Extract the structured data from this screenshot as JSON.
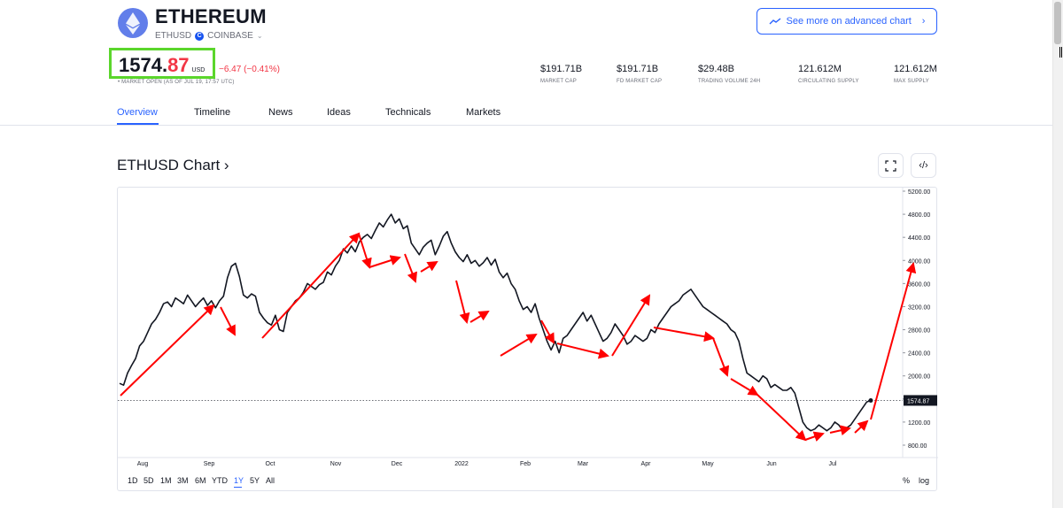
{
  "header": {
    "name": "ETHEREUM",
    "symbol": "ETHUSD",
    "exchange": "COINBASE",
    "advanced_label": "See more on advanced chart",
    "logo_color": "#627eea"
  },
  "quote": {
    "price_int": "1574.",
    "price_dec": "87",
    "currency": "USD",
    "change": "−6.47 (−0.41%)",
    "market_status": "• MARKET OPEN (AS OF JUL 19, 17:57 UTC)"
  },
  "stats": [
    {
      "value": "$191.71B",
      "label": "MARKET CAP"
    },
    {
      "value": "$191.71B",
      "label": "FD MARKET CAP"
    },
    {
      "value": "$29.48B",
      "label": "TRADING VOLUME 24H"
    },
    {
      "value": "121.612M",
      "label": "CIRCULATING SUPPLY"
    },
    {
      "value": "121.612M",
      "label": "MAX SUPPLY"
    }
  ],
  "tabs": [
    "Overview",
    "Timeline",
    "News",
    "Ideas",
    "Technicals",
    "Markets"
  ],
  "chart_title": "ETHUSD Chart ›",
  "ranges": [
    "1D",
    "5D",
    "1M",
    "3M",
    "6M",
    "YTD",
    "1Y",
    "5Y",
    "All"
  ],
  "active_range": "1Y",
  "scale_toggles": {
    "percent": "%",
    "log": "log"
  },
  "colors": {
    "accent": "#2962ff",
    "down": "#f23645",
    "highlight_box": "#5bd62c",
    "annotation": "#ff0000"
  },
  "chart_data": {
    "type": "line",
    "title": "",
    "y_ticks": [
      "5200.00",
      "4800.00",
      "4400.00",
      "4000.00",
      "3600.00",
      "3200.00",
      "2800.00",
      "2400.00",
      "2000.00",
      "1600.00",
      "1200.00",
      "800.00"
    ],
    "x_ticks": [
      "Aug",
      "Sep",
      "Oct",
      "Nov",
      "Dec",
      "2022",
      "Feb",
      "Mar",
      "Apr",
      "May",
      "Jun",
      "Jul"
    ],
    "ylim": [
      800,
      5200
    ],
    "last_price_label": "1574.87",
    "last_price": 1574.87,
    "series": [
      {
        "values": [
          1870,
          1840,
          2050,
          2180,
          2300,
          2520,
          2600,
          2750,
          2900,
          2980,
          3100,
          3250,
          3280,
          3200,
          3350,
          3300,
          3250,
          3400,
          3300,
          3200,
          3280,
          3350,
          3220,
          3300,
          3180,
          3300,
          3380,
          3700,
          3900,
          3950,
          3720,
          3400,
          3350,
          3420,
          3380,
          3100,
          3000,
          2920,
          2880,
          3050,
          2800,
          2770,
          3100,
          3200,
          3300,
          3350,
          3450,
          3600,
          3550,
          3500,
          3580,
          3620,
          3800,
          3750,
          3900,
          4000,
          4200,
          4130,
          4250,
          4150,
          4320,
          4400,
          4450,
          4380,
          4520,
          4650,
          4580,
          4700,
          4800,
          4650,
          4720,
          4550,
          4600,
          4300,
          4200,
          4100,
          4230,
          4300,
          4350,
          4100,
          4250,
          4420,
          4500,
          4300,
          4150,
          4050,
          3980,
          4100,
          3950,
          4000,
          3900,
          3960,
          4050,
          3920,
          4020,
          3800,
          3700,
          3780,
          3600,
          3500,
          3300,
          3150,
          3200,
          3100,
          3250,
          3000,
          2800,
          2600,
          2450,
          2600,
          2400,
          2650,
          2700,
          2800,
          2900,
          3000,
          3100,
          2950,
          3050,
          2900,
          2750,
          2600,
          2650,
          2750,
          2900,
          2800,
          2700,
          2550,
          2600,
          2700,
          2650,
          2600,
          2650,
          2800,
          2750,
          2900,
          3000,
          3100,
          3200,
          3250,
          3300,
          3400,
          3450,
          3500,
          3400,
          3300,
          3200,
          3150,
          3100,
          3050,
          3000,
          2950,
          2900,
          2800,
          2750,
          2600,
          2300,
          2050,
          2000,
          1950,
          1900,
          2000,
          1950,
          1800,
          1850,
          1800,
          1750,
          1750,
          1800,
          1700,
          1450,
          1200,
          1100,
          1050,
          1080,
          1150,
          1100,
          1050,
          1100,
          1200,
          1150,
          1050,
          1100,
          1150,
          1250,
          1350,
          1450,
          1550,
          1574.87
        ]
      }
    ],
    "annotations": "hand-drawn red arrows tracing swings"
  }
}
